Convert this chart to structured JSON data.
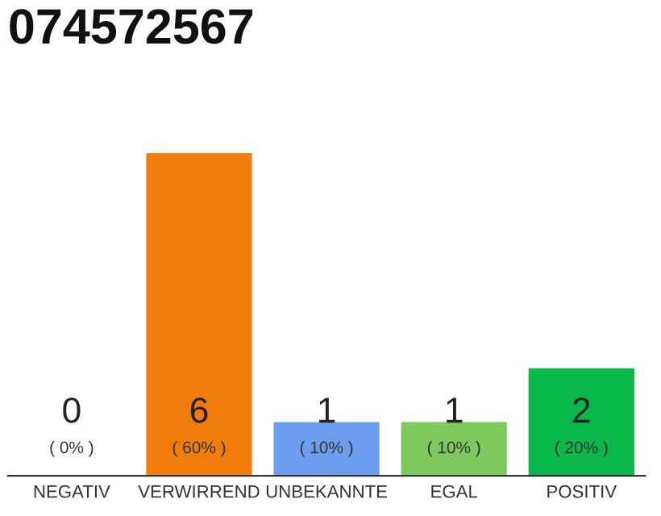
{
  "chart_data": {
    "type": "bar",
    "title": "074572567",
    "categories": [
      "NEGATIV",
      "VERWIRREND",
      "UNBEKANNTE",
      "EGAL",
      "POSITIV"
    ],
    "values": [
      0,
      6,
      1,
      1,
      2
    ],
    "colors": [
      "#9e9e9e",
      "#f07c0b",
      "#6c9ef0",
      "#7dc95e",
      "#0ab74a"
    ],
    "value_labels": [
      "0\n( 0% )",
      "6\n( 60% )",
      "1\n( 10% )",
      "1\n( 10% )",
      "2\n( 20% )"
    ],
    "grid": false,
    "legend": false
  }
}
